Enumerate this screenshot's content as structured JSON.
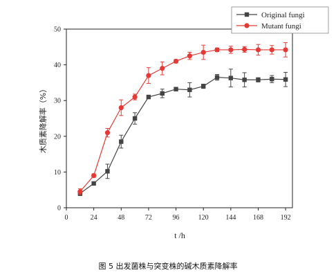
{
  "chart_data": {
    "type": "line",
    "xlabel": "t /h",
    "ylabel": "木质素降解率（%）",
    "x_ticks": [
      "0",
      "24",
      "48",
      "72",
      "96",
      "120",
      "144",
      "168",
      "192"
    ],
    "y_ticks": [
      "0",
      "10",
      "20",
      "30",
      "40",
      "50"
    ],
    "xlim": [
      0,
      198
    ],
    "ylim": [
      0,
      50
    ],
    "legend_position": "top-right",
    "grid": false,
    "series": [
      {
        "name": "Original fungi",
        "color": "#444444",
        "marker": "square",
        "x": [
          12,
          24,
          36,
          48,
          60,
          72,
          84,
          96,
          108,
          120,
          132,
          144,
          156,
          168,
          180,
          192
        ],
        "y": [
          4.0,
          6.8,
          10.2,
          18.5,
          25.0,
          31.0,
          32.0,
          33.2,
          33.0,
          34.0,
          36.5,
          36.3,
          35.8,
          35.8,
          36.0,
          35.9
        ],
        "err": [
          0.6,
          0.4,
          2.0,
          1.8,
          1.6,
          0.5,
          1.2,
          0.5,
          2.0,
          0.6,
          0.8,
          2.5,
          2.0,
          0.6,
          1.0,
          2.0
        ]
      },
      {
        "name": "Mutant fungi",
        "color": "#e53935",
        "marker": "circle",
        "x": [
          12,
          24,
          36,
          48,
          60,
          72,
          84,
          96,
          108,
          120,
          132,
          144,
          156,
          168,
          180,
          192
        ],
        "y": [
          4.5,
          9.0,
          21.0,
          28.0,
          31.0,
          37.0,
          39.0,
          41.0,
          42.5,
          43.5,
          44.2,
          44.2,
          44.3,
          44.2,
          44.2,
          44.2
        ],
        "err": [
          0.8,
          0.5,
          1.2,
          2.2,
          0.8,
          2.2,
          1.8,
          0.5,
          1.0,
          2.0,
          0.5,
          1.0,
          0.8,
          1.5,
          1.2,
          2.0
        ]
      }
    ]
  },
  "caption": {
    "cn": "图 5   出发菌株与突变株的碱木质素降解率"
  }
}
